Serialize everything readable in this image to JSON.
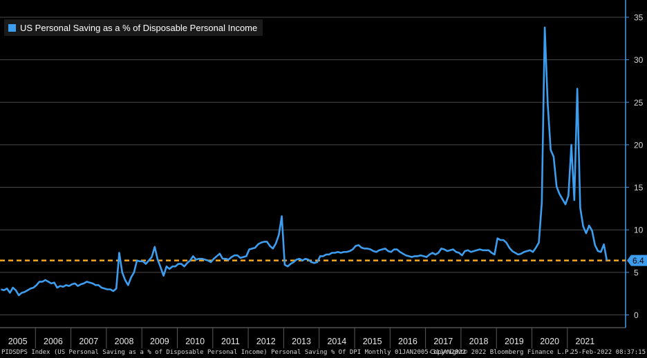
{
  "colors": {
    "background": "#000000",
    "series": "#3d9ef0",
    "reference_line": "#f5a623",
    "grid": "#4a4a4a",
    "axis": "#3d9ef0"
  },
  "chart_data": {
    "type": "line",
    "legend": "US Personal Saving as a % of Disposable Personal Income",
    "legend_position": "top-left",
    "grid": true,
    "ylim": [
      -1,
      36
    ],
    "y_ticks": [
      "0",
      "5",
      "10",
      "15",
      "20",
      "25",
      "30",
      "35"
    ],
    "x_ticks": [
      "2005",
      "2006",
      "2007",
      "2008",
      "2009",
      "2010",
      "2011",
      "2012",
      "2013",
      "2014",
      "2015",
      "2016",
      "2017",
      "2018",
      "2019",
      "2020",
      "2021"
    ],
    "last_value_label": "6.4",
    "reference_line": {
      "value": 6.4,
      "style": "dashed"
    },
    "series": [
      {
        "name": "US Personal Saving as a % of Disposable Personal Income",
        "x_start": "2005-01",
        "frequency": "monthly",
        "values": [
          3.0,
          2.9,
          3.1,
          2.6,
          3.2,
          2.9,
          2.3,
          2.6,
          2.7,
          2.9,
          3.1,
          3.2,
          3.5,
          3.9,
          3.9,
          4.1,
          3.9,
          3.7,
          3.8,
          3.2,
          3.4,
          3.3,
          3.5,
          3.4,
          3.6,
          3.7,
          3.4,
          3.6,
          3.7,
          3.9,
          3.8,
          3.7,
          3.5,
          3.5,
          3.2,
          3.1,
          3.0,
          3.0,
          2.8,
          3.1,
          7.3,
          5.0,
          4.1,
          3.5,
          4.4,
          5.0,
          6.4,
          6.3,
          6.3,
          6.0,
          6.4,
          6.8,
          8.0,
          6.5,
          5.6,
          4.6,
          5.7,
          5.4,
          5.7,
          5.7,
          6.0,
          6.0,
          5.7,
          6.1,
          6.4,
          6.9,
          6.5,
          6.6,
          6.6,
          6.5,
          6.4,
          6.2,
          6.6,
          6.9,
          7.2,
          6.6,
          6.6,
          6.5,
          6.8,
          7.0,
          7.0,
          6.7,
          6.8,
          6.9,
          7.7,
          7.8,
          7.9,
          8.3,
          8.5,
          8.6,
          8.6,
          8.1,
          7.8,
          8.4,
          9.4,
          11.6,
          5.9,
          5.7,
          6.0,
          6.2,
          6.5,
          6.6,
          6.4,
          6.6,
          6.5,
          6.2,
          6.1,
          6.2,
          6.9,
          6.9,
          7.1,
          7.1,
          7.3,
          7.3,
          7.4,
          7.3,
          7.4,
          7.4,
          7.5,
          7.7,
          8.1,
          8.2,
          7.9,
          7.8,
          7.8,
          7.7,
          7.5,
          7.4,
          7.6,
          7.7,
          7.8,
          7.5,
          7.4,
          7.7,
          7.7,
          7.4,
          7.2,
          7.0,
          6.9,
          6.8,
          6.9,
          6.9,
          7.0,
          6.9,
          6.8,
          7.1,
          7.3,
          7.1,
          7.3,
          7.8,
          7.7,
          7.5,
          7.6,
          7.7,
          7.4,
          7.3,
          7.0,
          7.5,
          7.6,
          7.4,
          7.5,
          7.6,
          7.7,
          7.6,
          7.6,
          7.6,
          7.3,
          7.1,
          9.0,
          8.8,
          8.8,
          8.5,
          7.9,
          7.5,
          7.3,
          7.1,
          7.2,
          7.4,
          7.5,
          7.6,
          7.4,
          7.9,
          8.5,
          13.2,
          33.8,
          24.8,
          19.4,
          18.6,
          15.1,
          14.2,
          13.6,
          13.0,
          14.0,
          20.0,
          13.5,
          26.6,
          12.6,
          10.4,
          9.6,
          10.5,
          9.9,
          8.2,
          7.5,
          7.4,
          8.3,
          6.4
        ]
      }
    ]
  },
  "footer": {
    "description": "PIDSDPS Index (US Personal Saving as a % of Disposable Personal Income) Personal Saving % Of DPI  Monthly 01JAN2005-31JAN2022",
    "copyright": "Copyright© 2022 Bloomberg Finance L.P.",
    "timestamp": "25-Feb-2022 08:37:15"
  }
}
